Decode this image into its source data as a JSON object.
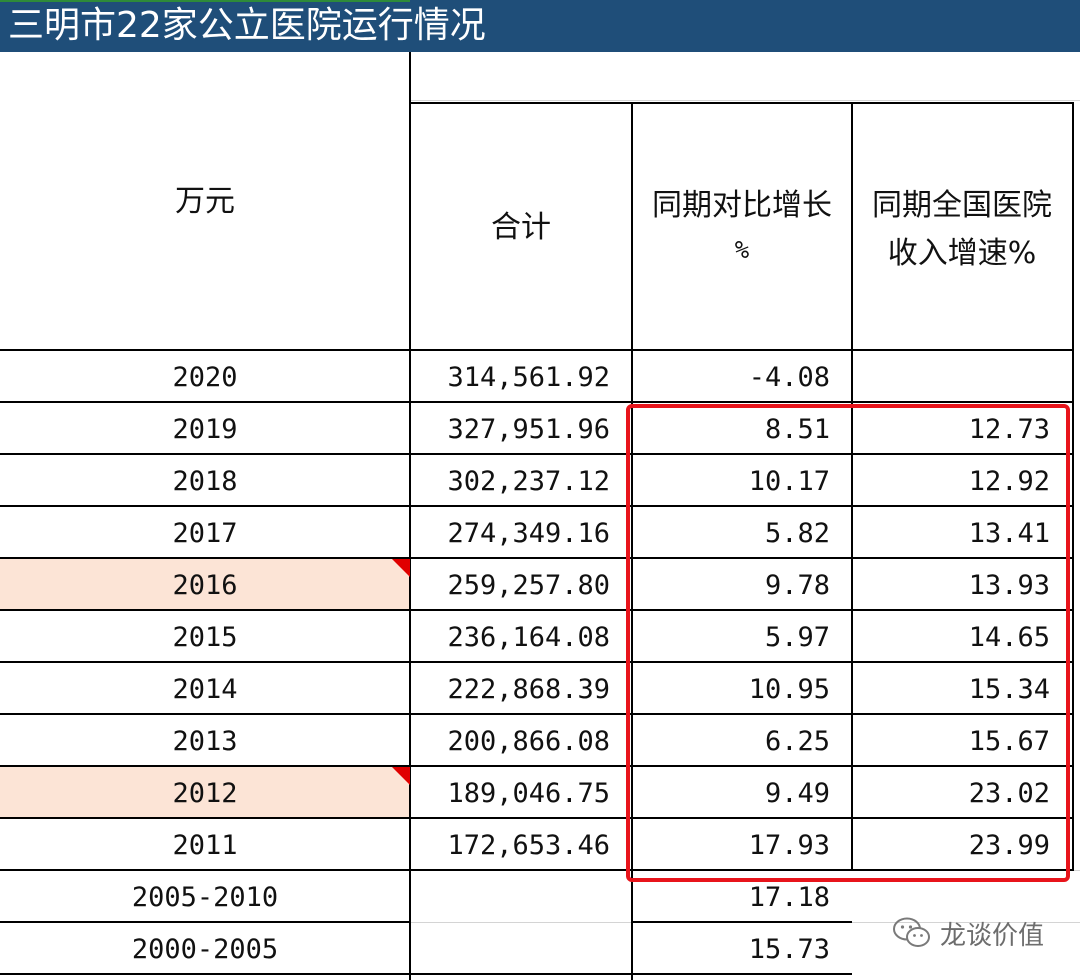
{
  "title": "三明市22家公立医院运行情况",
  "headers": {
    "unit": "万元",
    "total": "合计",
    "yoy_line1": "同期对比增长",
    "yoy_line2": "%",
    "national_line1": "同期全国医院",
    "national_line2": "收入增速%"
  },
  "rows": [
    {
      "year": "2020",
      "total": "314,561.92",
      "yoy": "-4.08",
      "national": ""
    },
    {
      "year": "2019",
      "total": "327,951.96",
      "yoy": "8.51",
      "national": "12.73"
    },
    {
      "year": "2018",
      "total": "302,237.12",
      "yoy": "10.17",
      "national": "12.92"
    },
    {
      "year": "2017",
      "total": "274,349.16",
      "yoy": "5.82",
      "national": "13.41"
    },
    {
      "year": "2016",
      "total": "259,257.80",
      "yoy": "9.78",
      "national": "13.93"
    },
    {
      "year": "2015",
      "total": "236,164.08",
      "yoy": "5.97",
      "national": "14.65"
    },
    {
      "year": "2014",
      "total": "222,868.39",
      "yoy": "10.95",
      "national": "15.34"
    },
    {
      "year": "2013",
      "total": "200,866.08",
      "yoy": "6.25",
      "national": "15.67"
    },
    {
      "year": "2012",
      "total": "189,046.75",
      "yoy": "9.49",
      "national": "23.02"
    },
    {
      "year": "2011",
      "total": "172,653.46",
      "yoy": "17.93",
      "national": "23.99"
    },
    {
      "year": "2005-2010",
      "total": "",
      "yoy": "17.18",
      "national": ""
    },
    {
      "year": "2000-2005",
      "total": "",
      "yoy": "15.73",
      "national": ""
    }
  ],
  "highlighted_years": [
    "2016",
    "2012"
  ],
  "watermark": "龙谈价值",
  "colors": {
    "title_bg": "#1f4e79",
    "highlight_bg": "#fce4d6",
    "annotation_red": "#e8141b",
    "comment_flag": "#e00000"
  }
}
